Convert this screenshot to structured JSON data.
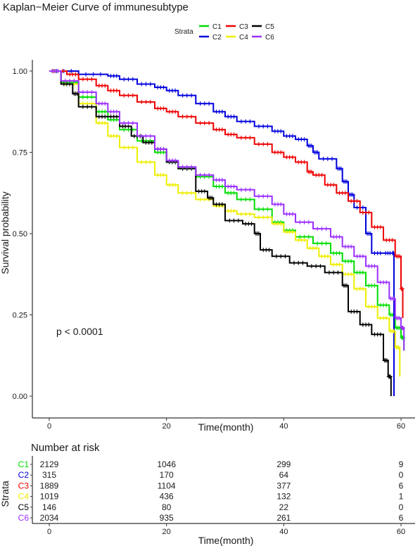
{
  "chart_data": [
    {
      "type": "line",
      "subtype": "kaplan-meier-step",
      "title": "Kaplan−Meier Curve of immunesubtype",
      "xlabel": "Time(month)",
      "ylabel": "Survival probability",
      "xlim": [
        0,
        60
      ],
      "ylim": [
        0,
        1
      ],
      "xticks": [
        "0",
        "20",
        "40",
        "60"
      ],
      "yticks": [
        "0.00",
        "0.25",
        "0.50",
        "0.75",
        "1.00"
      ],
      "grid": false,
      "legend": {
        "title": "Strata",
        "position": "top",
        "labels": [
          "C1",
          "C2",
          "C3",
          "C4",
          "C5",
          "C6"
        ]
      },
      "annotation": "p < 0.0001",
      "series": [
        {
          "name": "C1",
          "color": "#00dd00",
          "points": [
            [
              0,
              1.0
            ],
            [
              2,
              0.965
            ],
            [
              5,
              0.92
            ],
            [
              8,
              0.875
            ],
            [
              10,
              0.85
            ],
            [
              12,
              0.82
            ],
            [
              15,
              0.785
            ],
            [
              18,
              0.75
            ],
            [
              20,
              0.72
            ],
            [
              22,
              0.7
            ],
            [
              25,
              0.675
            ],
            [
              28,
              0.645
            ],
            [
              30,
              0.625
            ],
            [
              32,
              0.605
            ],
            [
              35,
              0.575
            ],
            [
              38,
              0.535
            ],
            [
              40,
              0.51
            ],
            [
              42,
              0.49
            ],
            [
              45,
              0.47
            ],
            [
              48,
              0.44
            ],
            [
              50,
              0.415
            ],
            [
              52,
              0.38
            ],
            [
              54,
              0.34
            ],
            [
              56,
              0.28
            ],
            [
              58,
              0.25
            ],
            [
              59,
              0.21
            ],
            [
              60,
              0.18
            ],
            [
              60.5,
              0.14
            ]
          ]
        },
        {
          "name": "C2",
          "color": "#0000dd",
          "points": [
            [
              0,
              1.0
            ],
            [
              5,
              0.99
            ],
            [
              10,
              0.985
            ],
            [
              12,
              0.975
            ],
            [
              15,
              0.96
            ],
            [
              18,
              0.95
            ],
            [
              20,
              0.94
            ],
            [
              22,
              0.925
            ],
            [
              25,
              0.9
            ],
            [
              28,
              0.875
            ],
            [
              30,
              0.86
            ],
            [
              32,
              0.845
            ],
            [
              35,
              0.83
            ],
            [
              38,
              0.815
            ],
            [
              40,
              0.8
            ],
            [
              42,
              0.79
            ],
            [
              44,
              0.77
            ],
            [
              45,
              0.75
            ],
            [
              46,
              0.73
            ],
            [
              49,
              0.7
            ],
            [
              50,
              0.66
            ],
            [
              51,
              0.62
            ],
            [
              52,
              0.58
            ],
            [
              54,
              0.5
            ],
            [
              55,
              0.44
            ],
            [
              57,
              0.44
            ],
            [
              58.5,
              0.44
            ],
            [
              58.8,
              0.0
            ]
          ]
        },
        {
          "name": "C3",
          "color": "#ee0000",
          "points": [
            [
              0,
              1.0
            ],
            [
              3,
              0.99
            ],
            [
              5,
              0.975
            ],
            [
              8,
              0.955
            ],
            [
              10,
              0.94
            ],
            [
              12,
              0.925
            ],
            [
              15,
              0.905
            ],
            [
              18,
              0.885
            ],
            [
              20,
              0.875
            ],
            [
              22,
              0.86
            ],
            [
              25,
              0.84
            ],
            [
              28,
              0.82
            ],
            [
              30,
              0.805
            ],
            [
              32,
              0.795
            ],
            [
              35,
              0.775
            ],
            [
              38,
              0.75
            ],
            [
              40,
              0.735
            ],
            [
              42,
              0.72
            ],
            [
              44,
              0.69
            ],
            [
              45,
              0.68
            ],
            [
              47,
              0.65
            ],
            [
              49,
              0.625
            ],
            [
              51,
              0.6
            ],
            [
              53,
              0.565
            ],
            [
              55,
              0.52
            ],
            [
              57,
              0.48
            ],
            [
              59,
              0.43
            ],
            [
              60,
              0.33
            ],
            [
              60.3,
              0.24
            ]
          ]
        },
        {
          "name": "C4",
          "color": "#eeee00",
          "points": [
            [
              0,
              1.0
            ],
            [
              2,
              0.96
            ],
            [
              5,
              0.9
            ],
            [
              8,
              0.84
            ],
            [
              10,
              0.8
            ],
            [
              12,
              0.765
            ],
            [
              15,
              0.72
            ],
            [
              18,
              0.68
            ],
            [
              20,
              0.65
            ],
            [
              22,
              0.625
            ],
            [
              25,
              0.605
            ],
            [
              28,
              0.585
            ],
            [
              30,
              0.57
            ],
            [
              32,
              0.56
            ],
            [
              35,
              0.55
            ],
            [
              38,
              0.53
            ],
            [
              40,
              0.505
            ],
            [
              42,
              0.48
            ],
            [
              44,
              0.455
            ],
            [
              46,
              0.43
            ],
            [
              48,
              0.405
            ],
            [
              50,
              0.375
            ],
            [
              52,
              0.33
            ],
            [
              54,
              0.275
            ],
            [
              56,
              0.24
            ],
            [
              58,
              0.2
            ],
            [
              59,
              0.15
            ],
            [
              59.8,
              0.06
            ]
          ]
        },
        {
          "name": "C5",
          "color": "#000000",
          "points": [
            [
              0,
              1.0
            ],
            [
              2,
              0.96
            ],
            [
              4,
              0.93
            ],
            [
              5,
              0.89
            ],
            [
              8,
              0.86
            ],
            [
              10,
              0.86
            ],
            [
              12,
              0.83
            ],
            [
              14,
              0.8
            ],
            [
              16,
              0.78
            ],
            [
              18,
              0.76
            ],
            [
              20,
              0.72
            ],
            [
              22,
              0.7
            ],
            [
              25,
              0.63
            ],
            [
              27,
              0.61
            ],
            [
              28,
              0.59
            ],
            [
              30,
              0.54
            ],
            [
              33,
              0.53
            ],
            [
              35,
              0.5
            ],
            [
              36,
              0.45
            ],
            [
              38,
              0.43
            ],
            [
              41,
              0.41
            ],
            [
              44,
              0.4
            ],
            [
              47,
              0.38
            ],
            [
              50,
              0.34
            ],
            [
              51,
              0.26
            ],
            [
              53,
              0.22
            ],
            [
              55,
              0.19
            ],
            [
              57,
              0.11
            ],
            [
              57.8,
              0.06
            ],
            [
              58.3,
              0.0
            ]
          ]
        },
        {
          "name": "C6",
          "color": "#9b30ff",
          "points": [
            [
              0,
              1.0
            ],
            [
              2,
              0.97
            ],
            [
              5,
              0.935
            ],
            [
              8,
              0.9
            ],
            [
              10,
              0.875
            ],
            [
              12,
              0.84
            ],
            [
              15,
              0.8
            ],
            [
              18,
              0.76
            ],
            [
              20,
              0.725
            ],
            [
              22,
              0.705
            ],
            [
              25,
              0.68
            ],
            [
              28,
              0.665
            ],
            [
              30,
              0.645
            ],
            [
              32,
              0.635
            ],
            [
              35,
              0.615
            ],
            [
              38,
              0.59
            ],
            [
              40,
              0.56
            ],
            [
              42,
              0.535
            ],
            [
              45,
              0.515
            ],
            [
              48,
              0.49
            ],
            [
              50,
              0.46
            ],
            [
              52,
              0.43
            ],
            [
              54,
              0.4
            ],
            [
              56,
              0.35
            ],
            [
              58,
              0.3
            ],
            [
              59,
              0.24
            ],
            [
              60,
              0.21
            ],
            [
              60.5,
              0.14
            ]
          ]
        }
      ]
    },
    {
      "type": "table",
      "title": "Number at risk",
      "xlabel": "Time(month)",
      "ylabel": "Strata",
      "xlim": [
        0,
        60
      ],
      "times": [
        0,
        20,
        40,
        60
      ],
      "xticks": [
        "0",
        "20",
        "40",
        "60"
      ],
      "rows": [
        {
          "name": "C1",
          "color": "#00dd00",
          "values": [
            "2129",
            "1046",
            "299",
            "9"
          ]
        },
        {
          "name": "C2",
          "color": "#0000dd",
          "values": [
            "315",
            "170",
            "64",
            "0"
          ]
        },
        {
          "name": "C3",
          "color": "#ee0000",
          "values": [
            "1889",
            "1104",
            "377",
            "6"
          ]
        },
        {
          "name": "C4",
          "color": "#eeee00",
          "values": [
            "1019",
            "436",
            "132",
            "1"
          ]
        },
        {
          "name": "C5",
          "color": "#000000",
          "values": [
            "146",
            "80",
            "22",
            "0"
          ]
        },
        {
          "name": "C6",
          "color": "#9b30ff",
          "values": [
            "2034",
            "935",
            "261",
            "6"
          ]
        }
      ]
    }
  ]
}
